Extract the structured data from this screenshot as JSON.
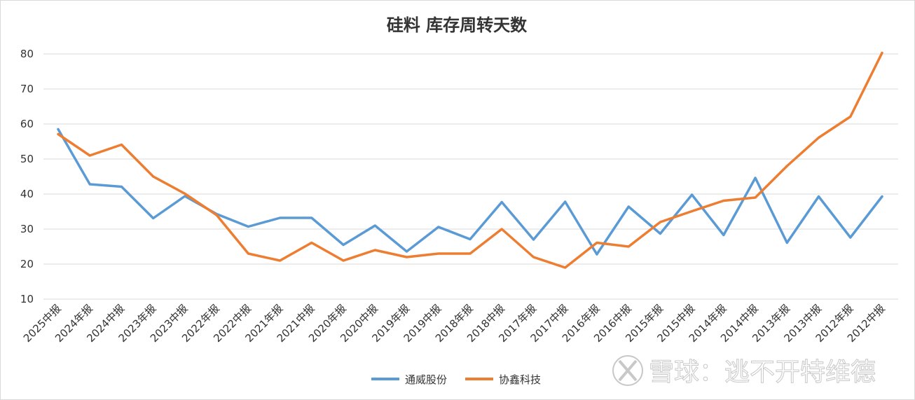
{
  "chart_data": {
    "type": "line",
    "title": "硅料 库存周转天数",
    "xlabel": "",
    "ylabel": "",
    "ylim": [
      10,
      80
    ],
    "yticks": [
      10,
      20,
      30,
      40,
      50,
      60,
      70,
      80
    ],
    "grid": true,
    "legend_position": "bottom",
    "categories": [
      "2025中报",
      "2024年报",
      "2024中报",
      "2023年报",
      "2023中报",
      "2022年报",
      "2022中报",
      "2021年报",
      "2021中报",
      "2020年报",
      "2020中报",
      "2019年报",
      "2019中报",
      "2018年报",
      "2018中报",
      "2017年报",
      "2017中报",
      "2016年报",
      "2016中报",
      "2015年报",
      "2015中报",
      "2014年报",
      "2014中报",
      "2013年报",
      "2013中报",
      "2012年报",
      "2012中报"
    ],
    "series": [
      {
        "name": "通威股份",
        "color": "#5b9bd5",
        "values": [
          58.5,
          42.8,
          42.1,
          33.1,
          39.4,
          34.3,
          30.7,
          33.2,
          33.2,
          25.5,
          31.0,
          23.6,
          30.6,
          27.1,
          37.7,
          27.0,
          37.8,
          22.8,
          36.4,
          28.7,
          39.8,
          28.3,
          44.6,
          26.1,
          39.3,
          27.6,
          39.3
        ]
      },
      {
        "name": "协鑫科技",
        "color": "#ed7d31",
        "values": [
          57.1,
          51.0,
          54.1,
          45.0,
          40.1,
          34.0,
          23.0,
          21.0,
          26.1,
          21.0,
          24.0,
          22.0,
          23.0,
          23.0,
          30.0,
          22.0,
          19.0,
          26.1,
          25.0,
          32.0,
          35.1,
          38.1,
          39.0,
          48.0,
          56.1,
          62.1,
          80.3
        ]
      }
    ]
  },
  "watermark": {
    "logo_icon": "snowball-logo-icon",
    "text": "雪球：逃不开特维德"
  }
}
